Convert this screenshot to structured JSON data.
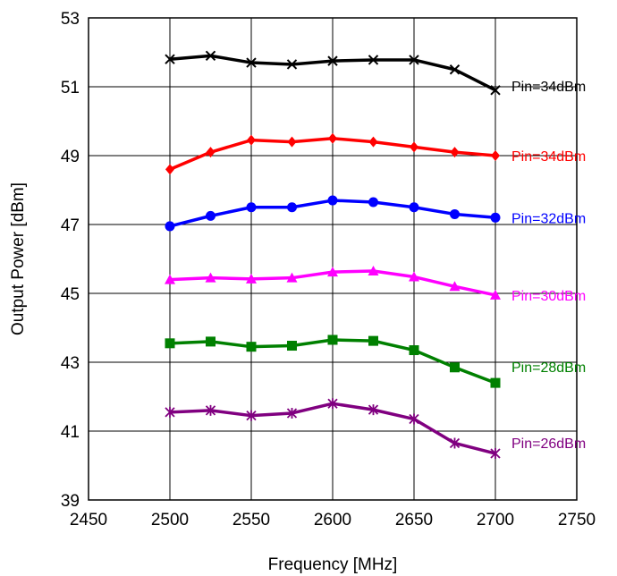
{
  "chart_data": {
    "type": "line",
    "title": "",
    "xlabel": "Frequency [MHz]",
    "ylabel": "Output Power [dBm]",
    "xlim": [
      2450,
      2750
    ],
    "ylim": [
      39,
      53
    ],
    "x_ticks": [
      2450,
      2500,
      2550,
      2600,
      2650,
      2700,
      2750
    ],
    "y_ticks": [
      39,
      41,
      43,
      45,
      47,
      49,
      51,
      53
    ],
    "grid": true,
    "legend": "none",
    "x": [
      2500,
      2525,
      2550,
      2575,
      2600,
      2625,
      2650,
      2675,
      2700
    ],
    "series": [
      {
        "name": "Pin=34dBm",
        "color": "#000000",
        "marker": "x",
        "label_color": "#000000",
        "values": [
          51.8,
          51.9,
          51.7,
          51.65,
          51.75,
          51.78,
          51.78,
          51.5,
          50.9
        ]
      },
      {
        "name": "Pin=34dBm",
        "color": "#ff0000",
        "marker": "diamond",
        "label_color": "#ff0000",
        "values": [
          48.6,
          49.1,
          49.45,
          49.4,
          49.5,
          49.4,
          49.25,
          49.1,
          49.0
        ]
      },
      {
        "name": "Pin=32dBm",
        "color": "#0000ff",
        "marker": "circle",
        "label_color": "#0000ff",
        "values": [
          46.95,
          47.25,
          47.5,
          47.5,
          47.7,
          47.65,
          47.5,
          47.3,
          47.2
        ]
      },
      {
        "name": "Pin=30dBm",
        "color": "#ff00ff",
        "marker": "triangle",
        "label_color": "#ff00ff",
        "values": [
          45.4,
          45.45,
          45.42,
          45.45,
          45.62,
          45.65,
          45.48,
          45.2,
          44.95
        ]
      },
      {
        "name": "Pin=28dBm",
        "color": "#008000",
        "marker": "square",
        "label_color": "#008000",
        "values": [
          43.55,
          43.6,
          43.45,
          43.48,
          43.65,
          43.62,
          43.35,
          42.85,
          42.4
        ]
      },
      {
        "name": "Pin=26dBm",
        "color": "#800080",
        "marker": "star",
        "label_color": "#800080",
        "values": [
          41.55,
          41.6,
          41.45,
          41.52,
          41.8,
          41.62,
          41.35,
          40.65,
          40.35
        ]
      }
    ]
  }
}
